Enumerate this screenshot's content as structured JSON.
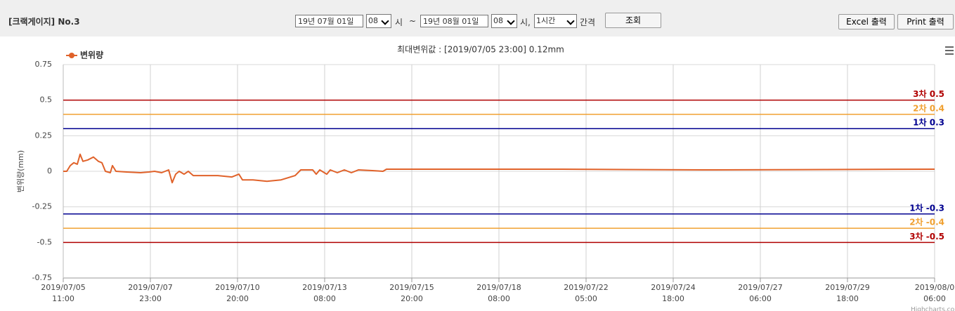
{
  "header": {
    "title": "[크랙게이지] No.3",
    "start_date": "19년 07월 01일",
    "start_hour": "08",
    "hour_unit": "시",
    "tilde": "~",
    "end_date": "19년 08월 01일",
    "end_hour": "08",
    "hour_unit_2": "시,",
    "interval": "1시간",
    "interval_label": "간격",
    "search_button": "조회",
    "excel_button": "Excel 출력",
    "print_button": "Print 출력"
  },
  "chart_data": {
    "type": "line",
    "subtitle": "최대변위값 : [2019/07/05 23:00] 0.12mm",
    "y_label": "변위량(mm)",
    "credits": "Highcharts.com",
    "grid": true,
    "legend": "top-left",
    "xlim": [
      0,
      620
    ],
    "xticks": [
      {
        "value": 0,
        "label": "2019/07/05\n11:00"
      },
      {
        "value": 62,
        "label": "2019/07/07\n23:00"
      },
      {
        "value": 124,
        "label": "2019/07/10\n20:00"
      },
      {
        "value": 186,
        "label": "2019/07/13\n08:00"
      },
      {
        "value": 248,
        "label": "2019/07/15\n20:00"
      },
      {
        "value": 310,
        "label": "2019/07/18\n08:00"
      },
      {
        "value": 372,
        "label": "2019/07/22\n05:00"
      },
      {
        "value": 434,
        "label": "2019/07/24\n18:00"
      },
      {
        "value": 496,
        "label": "2019/07/27\n06:00"
      },
      {
        "value": 558,
        "label": "2019/07/29\n18:00"
      },
      {
        "value": 620,
        "label": "2019/08/0\n06:00"
      }
    ],
    "ylim": [
      -0.75,
      0.75
    ],
    "yticks": [
      0.75,
      0.5,
      0.25,
      0,
      -0.25,
      -0.5,
      -0.75
    ],
    "plot_lines": [
      {
        "value": 0.5,
        "label": "3차 0.5",
        "color": "#b00000"
      },
      {
        "value": 0.4,
        "label": "2차 0.4",
        "color": "#f0a030"
      },
      {
        "value": 0.3,
        "label": "1차 0.3",
        "color": "#000090"
      },
      {
        "value": -0.3,
        "label": "1차 -0.3",
        "color": "#000090"
      },
      {
        "value": -0.4,
        "label": "2차 -0.4",
        "color": "#f0a030"
      },
      {
        "value": -0.5,
        "label": "3차 -0.5",
        "color": "#b00000"
      }
    ],
    "series": [
      {
        "name": "변위량",
        "color": "#e0622a",
        "x": [
          0,
          2.5,
          5,
          7.5,
          10,
          12,
          14,
          17.5,
          21.5,
          25,
          27.5,
          30,
          33.5,
          35,
          37.5,
          45,
          55,
          61,
          65,
          70,
          75,
          77.5,
          80,
          82.5,
          86,
          89,
          92.5,
          100,
          110,
          120,
          125,
          127.5,
          135,
          145,
          155,
          165,
          169,
          177.5,
          180,
          182.5,
          187.5,
          190,
          195,
          200,
          205,
          210,
          220,
          227.5,
          230,
          255,
          355,
          455,
          620
        ],
        "values": [
          0,
          0,
          0.04,
          0.06,
          0.05,
          0.12,
          0.07,
          0.08,
          0.1,
          0.07,
          0.06,
          0.0,
          -0.01,
          0.04,
          0,
          -0.005,
          -0.01,
          -0.005,
          0,
          -0.01,
          0.01,
          -0.08,
          -0.02,
          0,
          -0.02,
          0,
          -0.03,
          -0.03,
          -0.03,
          -0.04,
          -0.02,
          -0.06,
          -0.06,
          -0.07,
          -0.06,
          -0.03,
          0.01,
          0.01,
          -0.02,
          0.01,
          -0.02,
          0.01,
          -0.01,
          0.01,
          -0.01,
          0.01,
          0.005,
          0.0,
          0.015,
          0.015,
          0.015,
          0.01,
          0.015
        ]
      }
    ]
  }
}
